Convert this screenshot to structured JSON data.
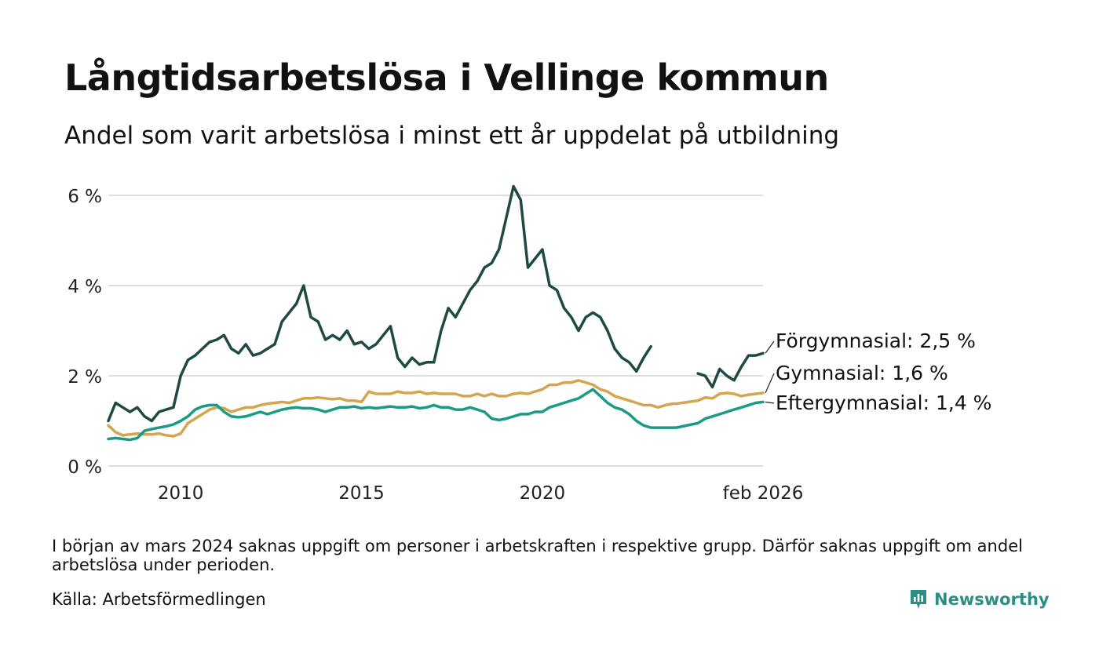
{
  "title": "Långtidsarbetslösa i Vellinge kommun",
  "subtitle": "Andel som varit arbetslösa i minst ett år uppdelat på utbildning",
  "note": "I början av mars 2024 saknas uppgift om personer i arbetskraften i respektive grupp. Därför saknas uppgift om andel arbetslösa under perioden.",
  "source": "Källa: Arbetsförmedlingen",
  "brand": {
    "name": "Newsworthy",
    "icon": "newsworthy-logo-icon"
  },
  "colors": {
    "forgymnasial": "#1f4a42",
    "gymnasial": "#d4a54e",
    "eftergymnasial": "#1b9a86",
    "grid": "#dddddd",
    "brand": "#2c8f85"
  },
  "chart_data": {
    "type": "line",
    "title": "Långtidsarbetslösa i Vellinge kommun",
    "xlabel": "",
    "ylabel": "",
    "ylim": [
      0,
      6
    ],
    "yticks": [
      0,
      2,
      4,
      6
    ],
    "ytick_labels": [
      "0 %",
      "2 %",
      "4 %",
      "6 %"
    ],
    "xlim": [
      2008.0,
      2026.1
    ],
    "xticks": [
      2010,
      2015,
      2020,
      2026.1
    ],
    "xtick_labels": [
      "2010",
      "2015",
      "2020",
      "feb 2026"
    ],
    "gap": [
      2023.7,
      2024.3
    ],
    "series": [
      {
        "name": "Förgymnasial",
        "color_key": "forgymnasial",
        "end_label": "Förgymnasial: 2,5 %",
        "x": [
          2008.0,
          2008.2,
          2008.4,
          2008.6,
          2008.8,
          2009.0,
          2009.2,
          2009.4,
          2009.6,
          2009.8,
          2010.0,
          2010.2,
          2010.4,
          2010.6,
          2010.8,
          2011.0,
          2011.2,
          2011.4,
          2011.6,
          2011.8,
          2012.0,
          2012.2,
          2012.4,
          2012.6,
          2012.8,
          2013.0,
          2013.2,
          2013.4,
          2013.6,
          2013.8,
          2014.0,
          2014.2,
          2014.4,
          2014.6,
          2014.8,
          2015.0,
          2015.2,
          2015.4,
          2015.6,
          2015.8,
          2016.0,
          2016.2,
          2016.4,
          2016.6,
          2016.8,
          2017.0,
          2017.2,
          2017.4,
          2017.6,
          2017.8,
          2018.0,
          2018.2,
          2018.4,
          2018.6,
          2018.8,
          2019.0,
          2019.2,
          2019.4,
          2019.6,
          2019.8,
          2020.0,
          2020.2,
          2020.4,
          2020.6,
          2020.8,
          2021.0,
          2021.2,
          2021.4,
          2021.6,
          2021.8,
          2022.0,
          2022.2,
          2022.4,
          2022.6,
          2022.8,
          2023.0,
          2023.2,
          2023.4,
          2023.6,
          2023.7,
          2024.3,
          2024.5,
          2024.7,
          2024.9,
          2025.1,
          2025.3,
          2025.5,
          2025.7,
          2025.9,
          2026.1
        ],
        "y": [
          1.0,
          1.4,
          1.3,
          1.2,
          1.3,
          1.1,
          1.0,
          1.2,
          1.25,
          1.3,
          2.0,
          2.35,
          2.45,
          2.6,
          2.75,
          2.8,
          2.9,
          2.6,
          2.5,
          2.7,
          2.45,
          2.5,
          2.6,
          2.7,
          3.2,
          3.4,
          3.6,
          4.0,
          3.3,
          3.2,
          2.8,
          2.9,
          2.8,
          3.0,
          2.7,
          2.75,
          2.6,
          2.7,
          2.9,
          3.1,
          2.4,
          2.2,
          2.4,
          2.25,
          2.3,
          2.3,
          3.0,
          3.5,
          3.3,
          3.6,
          3.9,
          4.1,
          4.4,
          4.5,
          4.8,
          5.5,
          6.2,
          5.9,
          4.4,
          4.6,
          4.8,
          4.0,
          3.9,
          3.5,
          3.3,
          3.0,
          3.3,
          3.4,
          3.3,
          3.0,
          2.6,
          2.4,
          2.3,
          2.1,
          2.4,
          2.65,
          null,
          null,
          null,
          null,
          2.05,
          2.0,
          1.75,
          2.15,
          2.0,
          1.9,
          2.2,
          2.45,
          2.45,
          2.5
        ]
      },
      {
        "name": "Gymnasial",
        "color_key": "gymnasial",
        "end_label": "Gymnasial: 1,6 %",
        "x": [
          2008.0,
          2008.2,
          2008.4,
          2008.6,
          2008.8,
          2009.0,
          2009.2,
          2009.4,
          2009.6,
          2009.8,
          2010.0,
          2010.2,
          2010.4,
          2010.6,
          2010.8,
          2011.0,
          2011.2,
          2011.4,
          2011.6,
          2011.8,
          2012.0,
          2012.2,
          2012.4,
          2012.6,
          2012.8,
          2013.0,
          2013.2,
          2013.4,
          2013.6,
          2013.8,
          2014.0,
          2014.2,
          2014.4,
          2014.6,
          2014.8,
          2015.0,
          2015.2,
          2015.4,
          2015.6,
          2015.8,
          2016.0,
          2016.2,
          2016.4,
          2016.6,
          2016.8,
          2017.0,
          2017.2,
          2017.4,
          2017.6,
          2017.8,
          2018.0,
          2018.2,
          2018.4,
          2018.6,
          2018.8,
          2019.0,
          2019.2,
          2019.4,
          2019.6,
          2019.8,
          2020.0,
          2020.2,
          2020.4,
          2020.6,
          2020.8,
          2021.0,
          2021.2,
          2021.4,
          2021.6,
          2021.8,
          2022.0,
          2022.2,
          2022.4,
          2022.6,
          2022.8,
          2023.0,
          2023.2,
          2023.4,
          2023.6,
          2023.7,
          2024.3,
          2024.5,
          2024.7,
          2024.9,
          2025.1,
          2025.3,
          2025.5,
          2025.7,
          2025.9,
          2026.1
        ],
        "y": [
          0.9,
          0.75,
          0.68,
          0.7,
          0.72,
          0.7,
          0.7,
          0.72,
          0.68,
          0.66,
          0.72,
          0.95,
          1.05,
          1.15,
          1.25,
          1.3,
          1.28,
          1.2,
          1.25,
          1.3,
          1.3,
          1.35,
          1.38,
          1.4,
          1.42,
          1.4,
          1.45,
          1.5,
          1.5,
          1.52,
          1.5,
          1.48,
          1.5,
          1.45,
          1.45,
          1.42,
          1.65,
          1.6,
          1.6,
          1.6,
          1.65,
          1.62,
          1.62,
          1.65,
          1.6,
          1.62,
          1.6,
          1.6,
          1.6,
          1.55,
          1.55,
          1.6,
          1.55,
          1.6,
          1.55,
          1.55,
          1.6,
          1.62,
          1.6,
          1.65,
          1.7,
          1.8,
          1.8,
          1.85,
          1.85,
          1.9,
          1.85,
          1.8,
          1.7,
          1.65,
          1.55,
          1.5,
          1.45,
          1.4,
          1.35,
          1.35,
          1.3,
          1.35,
          1.38,
          1.38,
          1.45,
          1.52,
          1.5,
          1.6,
          1.62,
          1.6,
          1.55,
          1.58,
          1.6,
          1.62
        ]
      },
      {
        "name": "Eftergymnasial",
        "color_key": "eftergymnasial",
        "end_label": "Eftergymnasial: 1,4 %",
        "x": [
          2008.0,
          2008.2,
          2008.4,
          2008.6,
          2008.8,
          2009.0,
          2009.2,
          2009.4,
          2009.6,
          2009.8,
          2010.0,
          2010.2,
          2010.4,
          2010.6,
          2010.8,
          2011.0,
          2011.2,
          2011.4,
          2011.6,
          2011.8,
          2012.0,
          2012.2,
          2012.4,
          2012.6,
          2012.8,
          2013.0,
          2013.2,
          2013.4,
          2013.6,
          2013.8,
          2014.0,
          2014.2,
          2014.4,
          2014.6,
          2014.8,
          2015.0,
          2015.2,
          2015.4,
          2015.6,
          2015.8,
          2016.0,
          2016.2,
          2016.4,
          2016.6,
          2016.8,
          2017.0,
          2017.2,
          2017.4,
          2017.6,
          2017.8,
          2018.0,
          2018.2,
          2018.4,
          2018.6,
          2018.8,
          2019.0,
          2019.2,
          2019.4,
          2019.6,
          2019.8,
          2020.0,
          2020.2,
          2020.4,
          2020.6,
          2020.8,
          2021.0,
          2021.2,
          2021.4,
          2021.6,
          2021.8,
          2022.0,
          2022.2,
          2022.4,
          2022.6,
          2022.8,
          2023.0,
          2023.2,
          2023.4,
          2023.6,
          2023.7,
          2024.3,
          2024.5,
          2024.7,
          2024.9,
          2025.1,
          2025.3,
          2025.5,
          2025.7,
          2025.9,
          2026.1
        ],
        "y": [
          0.6,
          0.62,
          0.6,
          0.58,
          0.62,
          0.78,
          0.82,
          0.85,
          0.88,
          0.92,
          1.0,
          1.1,
          1.25,
          1.32,
          1.35,
          1.35,
          1.2,
          1.1,
          1.08,
          1.1,
          1.15,
          1.2,
          1.15,
          1.2,
          1.25,
          1.28,
          1.3,
          1.28,
          1.28,
          1.25,
          1.2,
          1.25,
          1.3,
          1.3,
          1.32,
          1.28,
          1.3,
          1.28,
          1.3,
          1.32,
          1.3,
          1.3,
          1.32,
          1.28,
          1.3,
          1.35,
          1.3,
          1.3,
          1.25,
          1.25,
          1.3,
          1.25,
          1.2,
          1.05,
          1.02,
          1.05,
          1.1,
          1.15,
          1.15,
          1.2,
          1.2,
          1.3,
          1.35,
          1.4,
          1.45,
          1.5,
          1.6,
          1.7,
          1.55,
          1.4,
          1.3,
          1.25,
          1.15,
          1.0,
          0.9,
          0.85,
          0.85,
          0.85,
          0.85,
          0.85,
          0.95,
          1.05,
          1.1,
          1.15,
          1.2,
          1.25,
          1.3,
          1.35,
          1.4,
          1.42
        ]
      }
    ]
  }
}
